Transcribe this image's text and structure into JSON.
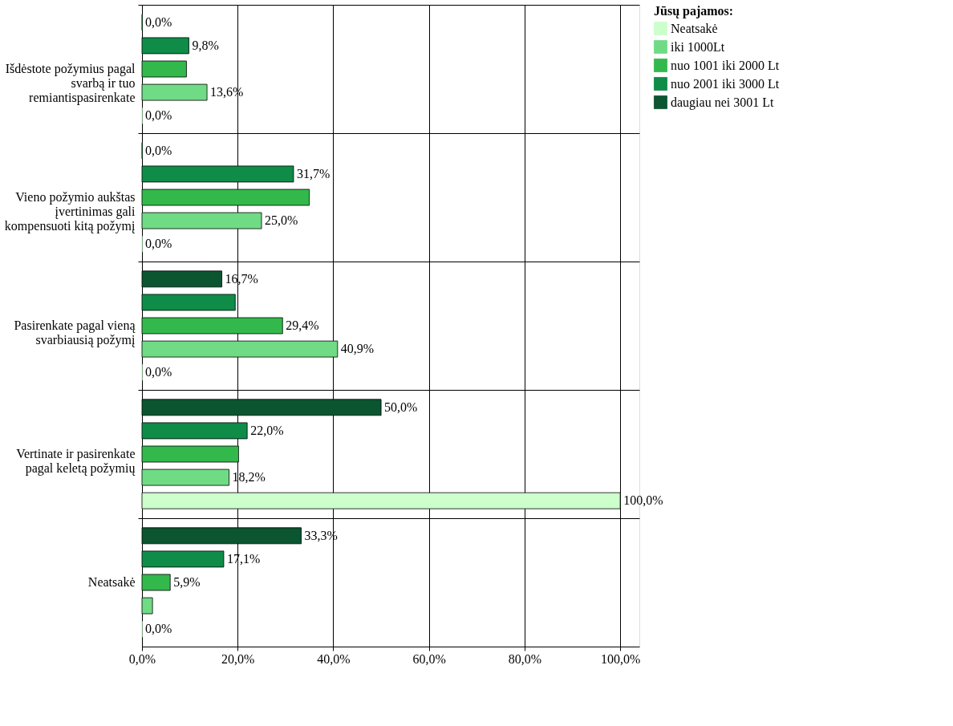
{
  "chart_data": {
    "type": "bar",
    "orientation": "horizontal",
    "legend_title": "Jūsų pajamos:",
    "legend": "top right",
    "grid": true,
    "categories": [
      "Išdėstote požymius pagal svarbą ir tuo remiantispasirenkate",
      "Vieno požymio aukštas įvertinimas gali kompensuoti kitą požymį",
      "Pasirenkate pagal vieną svarbiausią požymį",
      "Vertinate ir pasirenkate pagal keletą požymių",
      "Neatsakė"
    ],
    "xlim": [
      0,
      104
    ],
    "xticks": [
      {
        "value": 0,
        "label": "0,0%"
      },
      {
        "value": 20,
        "label": "20,0%"
      },
      {
        "value": 40,
        "label": "40,0%"
      },
      {
        "value": 60,
        "label": "60,0%"
      },
      {
        "value": 80,
        "label": "80,0%"
      },
      {
        "value": 100,
        "label": "100,0%"
      }
    ],
    "series": [
      {
        "name": "Neatsakė",
        "color": "#ccffcc",
        "values": [
          0,
          0,
          0,
          100,
          0
        ],
        "value_labels": [
          "0,0%",
          "0,0%",
          "0,0%",
          "100,0%",
          "0,0%"
        ]
      },
      {
        "name": "iki 1000Lt",
        "color": "#70db85",
        "values": [
          13.6,
          25,
          40.9,
          18.2,
          2.2
        ],
        "value_labels": [
          "13,6%",
          "25,0%",
          "40,9%",
          "18,2%",
          null
        ]
      },
      {
        "name": "nuo 1001  iki 2000 Lt",
        "color": "#33b84c",
        "values": [
          9.3,
          35.0,
          29.4,
          20.2,
          5.9
        ],
        "value_labels": [
          null,
          null,
          "29,4%",
          null,
          "5,9%"
        ]
      },
      {
        "name": "nuo 2001 iki 3000 Lt",
        "color": "#0e8c48",
        "values": [
          9.8,
          31.7,
          19.5,
          22,
          17.1
        ],
        "value_labels": [
          "9,8%",
          "31,7%",
          null,
          "22,0%",
          "17,1%"
        ]
      },
      {
        "name": "daugiau nei 3001 Lt",
        "color": "#0b5530",
        "values": [
          0,
          0,
          16.7,
          50,
          33.3
        ],
        "value_labels": [
          "0,0%",
          "0,0%",
          "16,7%",
          "50,0%",
          "33,3%"
        ]
      }
    ]
  }
}
